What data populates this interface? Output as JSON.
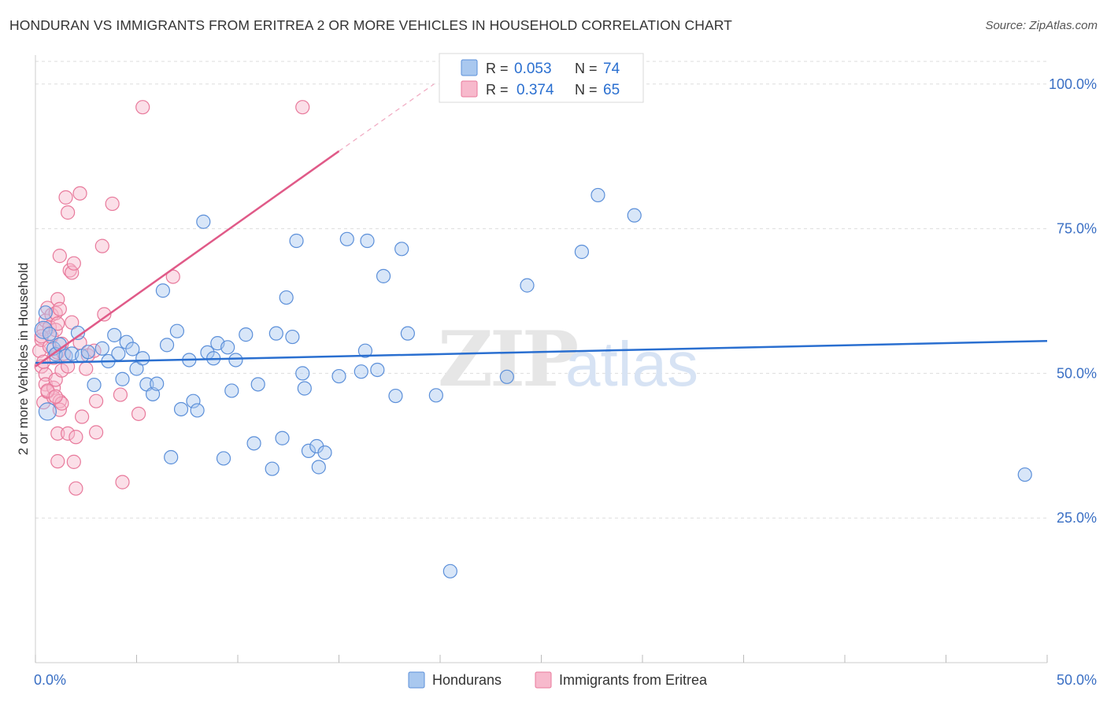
{
  "title": "HONDURAN VS IMMIGRANTS FROM ERITREA 2 OR MORE VEHICLES IN HOUSEHOLD CORRELATION CHART",
  "source": "Source: ZipAtlas.com",
  "watermark": {
    "zip": "ZIP",
    "atlas": "atlas"
  },
  "colors": {
    "blue_fill": "#a9c8ef",
    "blue_stroke": "#5b8fd9",
    "blue_line": "#2a6fd0",
    "pink_fill": "#f7b9cc",
    "pink_stroke": "#e8799b",
    "pink_line": "#e05a88",
    "tick_text": "#3a6fc4",
    "grid": "#dddddd"
  },
  "legend": [
    {
      "r_label": "R =",
      "r_value": "0.053",
      "n_label": "N =",
      "n_value": "74"
    },
    {
      "r_label": "R =",
      "r_value": "0.374",
      "n_label": "N =",
      "n_value": "65"
    }
  ],
  "chart_data": {
    "type": "scatter",
    "title": "HONDURAN VS IMMIGRANTS FROM ERITREA 2 OR MORE VEHICLES IN HOUSEHOLD CORRELATION CHART",
    "xlabel": "",
    "ylabel": "2 or more Vehicles in Household",
    "xlim": [
      0,
      50
    ],
    "ylim": [
      0,
      105
    ],
    "x_tick_labels": [
      "0.0%",
      "50.0%"
    ],
    "y_ticks": [
      25,
      50,
      75,
      100
    ],
    "y_tick_labels": [
      "25.0%",
      "50.0%",
      "75.0%",
      "100.0%"
    ],
    "grid": true,
    "legend_position": "top-center",
    "series": [
      {
        "name": "Hondurans",
        "color": "#a9c8ef",
        "points": [
          [
            0.4,
            57.5
          ],
          [
            0.5,
            60.5
          ],
          [
            0.7,
            56.8
          ],
          [
            0.9,
            54.3
          ],
          [
            1.0,
            53.3
          ],
          [
            1.2,
            55.0
          ],
          [
            1.5,
            53.0
          ],
          [
            1.8,
            53.4
          ],
          [
            2.1,
            57.0
          ],
          [
            2.3,
            53.0
          ],
          [
            2.6,
            53.7
          ],
          [
            2.9,
            48.0
          ],
          [
            3.3,
            54.3
          ],
          [
            3.6,
            52.1
          ],
          [
            3.9,
            56.6
          ],
          [
            4.1,
            53.4
          ],
          [
            4.3,
            49.0
          ],
          [
            4.5,
            55.4
          ],
          [
            4.8,
            54.2
          ],
          [
            5.0,
            50.8
          ],
          [
            5.3,
            52.6
          ],
          [
            5.5,
            48.1
          ],
          [
            5.8,
            46.4
          ],
          [
            6.0,
            48.2
          ],
          [
            6.3,
            64.3
          ],
          [
            6.5,
            54.9
          ],
          [
            6.7,
            35.5
          ],
          [
            7.0,
            57.3
          ],
          [
            7.2,
            43.8
          ],
          [
            7.6,
            52.3
          ],
          [
            7.8,
            45.2
          ],
          [
            8.0,
            43.6
          ],
          [
            8.3,
            76.2
          ],
          [
            8.5,
            53.6
          ],
          [
            8.8,
            52.6
          ],
          [
            9.0,
            55.2
          ],
          [
            9.3,
            35.3
          ],
          [
            9.5,
            54.5
          ],
          [
            9.7,
            47.0
          ],
          [
            9.9,
            52.3
          ],
          [
            10.4,
            56.7
          ],
          [
            10.8,
            37.9
          ],
          [
            11.0,
            48.1
          ],
          [
            11.7,
            33.5
          ],
          [
            11.9,
            56.9
          ],
          [
            12.2,
            38.8
          ],
          [
            12.4,
            63.1
          ],
          [
            12.7,
            56.3
          ],
          [
            12.9,
            72.9
          ],
          [
            13.2,
            50.0
          ],
          [
            13.3,
            47.4
          ],
          [
            13.5,
            36.6
          ],
          [
            13.9,
            37.4
          ],
          [
            14.0,
            33.8
          ],
          [
            14.3,
            36.3
          ],
          [
            15.0,
            49.5
          ],
          [
            15.4,
            73.2
          ],
          [
            16.1,
            50.3
          ],
          [
            16.3,
            53.9
          ],
          [
            16.4,
            72.9
          ],
          [
            16.9,
            50.6
          ],
          [
            17.2,
            66.8
          ],
          [
            17.8,
            46.1
          ],
          [
            18.1,
            71.5
          ],
          [
            18.4,
            56.9
          ],
          [
            19.8,
            46.2
          ],
          [
            20.5,
            15.8
          ],
          [
            23.3,
            49.4
          ],
          [
            24.3,
            65.2
          ],
          [
            27.0,
            71.0
          ],
          [
            27.8,
            80.8
          ],
          [
            29.6,
            77.3
          ],
          [
            48.9,
            32.5
          ],
          [
            0.6,
            43.4
          ]
        ],
        "trend": {
          "x": [
            0,
            50
          ],
          "y": [
            51.8,
            55.6
          ]
        }
      },
      {
        "name": "Immigrants from Eritrea",
        "color": "#f7b9cc",
        "points": [
          [
            0.2,
            53.9
          ],
          [
            0.3,
            55.8
          ],
          [
            0.3,
            51.2
          ],
          [
            0.4,
            57.6
          ],
          [
            0.4,
            45.0
          ],
          [
            0.5,
            59.1
          ],
          [
            0.5,
            49.8
          ],
          [
            0.5,
            48.1
          ],
          [
            0.6,
            61.3
          ],
          [
            0.6,
            46.8
          ],
          [
            0.7,
            58.0
          ],
          [
            0.7,
            54.6
          ],
          [
            0.8,
            60.1
          ],
          [
            0.8,
            56.3
          ],
          [
            0.9,
            52.7
          ],
          [
            0.9,
            47.5
          ],
          [
            0.9,
            45.8
          ],
          [
            1.0,
            57.5
          ],
          [
            1.0,
            60.4
          ],
          [
            1.0,
            48.9
          ],
          [
            1.1,
            62.8
          ],
          [
            1.1,
            53.6
          ],
          [
            1.1,
            58.6
          ],
          [
            1.1,
            39.6
          ],
          [
            1.1,
            34.8
          ],
          [
            1.2,
            70.3
          ],
          [
            1.2,
            61.1
          ],
          [
            1.2,
            45.2
          ],
          [
            1.2,
            43.7
          ],
          [
            1.3,
            55.1
          ],
          [
            1.3,
            50.5
          ],
          [
            1.3,
            44.8
          ],
          [
            1.4,
            53.4
          ],
          [
            1.5,
            80.4
          ],
          [
            1.6,
            77.8
          ],
          [
            1.6,
            51.2
          ],
          [
            1.6,
            39.6
          ],
          [
            1.7,
            67.8
          ],
          [
            1.8,
            67.4
          ],
          [
            1.8,
            58.8
          ],
          [
            1.9,
            69.0
          ],
          [
            1.9,
            34.7
          ],
          [
            2.0,
            39.0
          ],
          [
            2.0,
            30.1
          ],
          [
            2.2,
            81.1
          ],
          [
            2.2,
            55.3
          ],
          [
            2.3,
            42.5
          ],
          [
            2.5,
            50.8
          ],
          [
            2.6,
            53.1
          ],
          [
            2.9,
            53.9
          ],
          [
            3.0,
            45.2
          ],
          [
            3.0,
            39.8
          ],
          [
            3.3,
            72.0
          ],
          [
            3.4,
            60.2
          ],
          [
            3.8,
            79.3
          ],
          [
            4.2,
            46.3
          ],
          [
            4.3,
            31.2
          ],
          [
            5.1,
            43.0
          ],
          [
            5.3,
            96.0
          ],
          [
            6.8,
            66.7
          ],
          [
            13.2,
            96.0
          ],
          [
            0.3,
            56.4
          ],
          [
            0.6,
            47.0
          ],
          [
            0.4,
            52.0
          ],
          [
            1.0,
            46.0
          ]
        ],
        "trend": {
          "x": [
            0,
            15
          ],
          "y": [
            51.2,
            88.4
          ],
          "dashed_extension": {
            "x": [
              15,
              19.7
            ],
            "y": [
              88.4,
              100.0
            ]
          }
        }
      }
    ]
  }
}
